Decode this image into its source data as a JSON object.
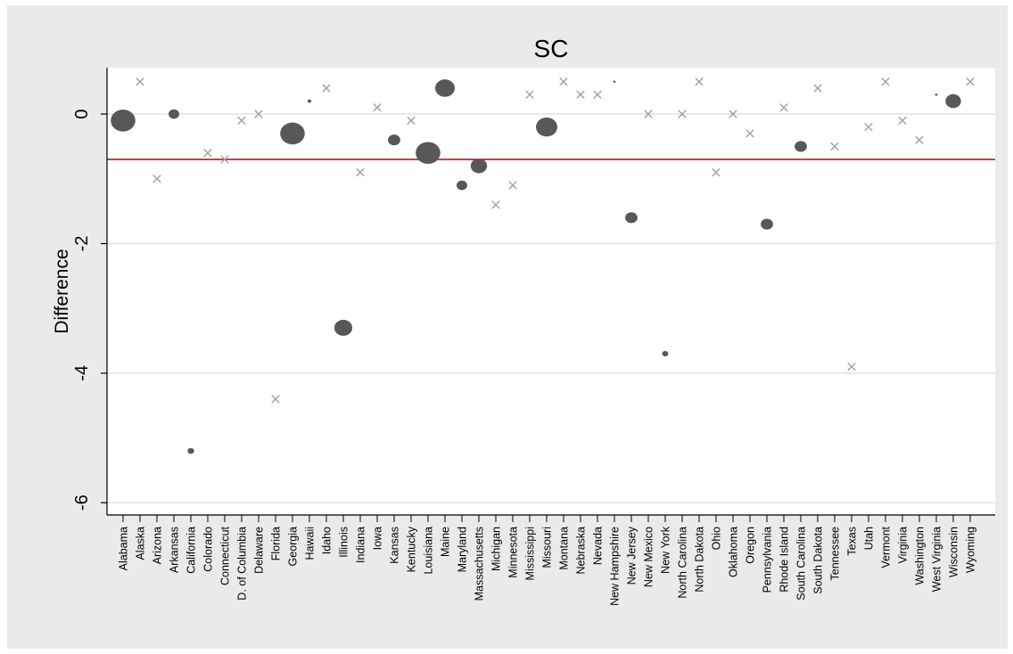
{
  "chart_data": {
    "type": "scatter",
    "title": "SC",
    "xlabel": "",
    "ylabel": "Difference",
    "ylim": [
      -6.3,
      0.7
    ],
    "yticks": [
      0,
      -2,
      -4,
      -6
    ],
    "ytick_labels": [
      "0",
      "-2",
      "-4",
      "-6"
    ],
    "grid": true,
    "reference_line": {
      "y": -0.7,
      "color": "#cc2222"
    },
    "marker_colors": {
      "circle": "#585858",
      "cross": "#a0a0a0"
    },
    "categories": [
      "Alabama",
      "Alaska",
      "Arizona",
      "Arkansas",
      "California",
      "Colorado",
      "Connecticut",
      "D. of Columbia",
      "Delaware",
      "Florida",
      "Georgia",
      "Hawaii",
      "Idaho",
      "Illinois",
      "Indiana",
      "Iowa",
      "Kansas",
      "Kentucky",
      "Louisiana",
      "Maine",
      "Maryland",
      "Massachusetts",
      "Michigan",
      "Minnesota",
      "Mississippi",
      "Missouri",
      "Montana",
      "Nebraska",
      "Nevada",
      "New Hampshire",
      "New Jersey",
      "New Mexico",
      "New York",
      "North Carolina",
      "North Dakota",
      "Ohio",
      "Oklahoma",
      "Oregon",
      "Pennsylvania",
      "Rhode Island",
      "South Carolina",
      "South Dakota",
      "Tennessee",
      "Texas",
      "Utah",
      "Vermont",
      "Virginia",
      "Washington",
      "West Virginia",
      "Wisconsin",
      "Wyoming"
    ],
    "values": [
      -0.1,
      0.5,
      -1.0,
      0.0,
      -5.2,
      -0.6,
      -0.7,
      -0.1,
      0.0,
      -4.4,
      -0.3,
      0.2,
      0.4,
      -3.3,
      -0.9,
      0.1,
      -0.4,
      -0.1,
      -0.6,
      0.4,
      -1.1,
      -0.8,
      -1.4,
      -1.1,
      0.3,
      -0.2,
      0.5,
      0.3,
      0.3,
      0.5,
      -1.6,
      0.0,
      -3.7,
      0.0,
      0.5,
      -0.9,
      0.0,
      -0.3,
      -1.7,
      0.1,
      -0.5,
      0.4,
      -0.5,
      -3.9,
      -0.2,
      0.5,
      -0.1,
      -0.4,
      0.3,
      0.2,
      0.5
    ],
    "marker": [
      "circle",
      "cross",
      "cross",
      "circle",
      "circle",
      "cross",
      "cross",
      "cross",
      "cross",
      "cross",
      "circle",
      "circle",
      "cross",
      "circle",
      "cross",
      "cross",
      "circle",
      "cross",
      "circle",
      "circle",
      "circle",
      "circle",
      "cross",
      "cross",
      "cross",
      "circle",
      "cross",
      "cross",
      "cross",
      "circle",
      "circle",
      "cross",
      "circle",
      "cross",
      "cross",
      "cross",
      "cross",
      "cross",
      "circle",
      "cross",
      "circle",
      "cross",
      "cross",
      "cross",
      "cross",
      "cross",
      "cross",
      "cross",
      "circle",
      "circle",
      "cross"
    ],
    "weight": [
      3.0,
      0,
      0,
      1.3,
      0.8,
      0,
      0,
      0,
      0,
      0,
      3.0,
      0.45,
      0,
      2.2,
      0,
      0,
      1.5,
      0,
      3.0,
      2.4,
      1.3,
      2.0,
      0,
      0,
      0,
      2.6,
      0,
      0,
      0,
      0.3,
      1.5,
      0,
      0.75,
      0,
      0,
      0,
      0,
      0,
      1.5,
      0,
      1.5,
      0,
      0,
      0,
      0,
      0,
      0,
      0,
      0.3,
      1.9,
      0
    ]
  }
}
